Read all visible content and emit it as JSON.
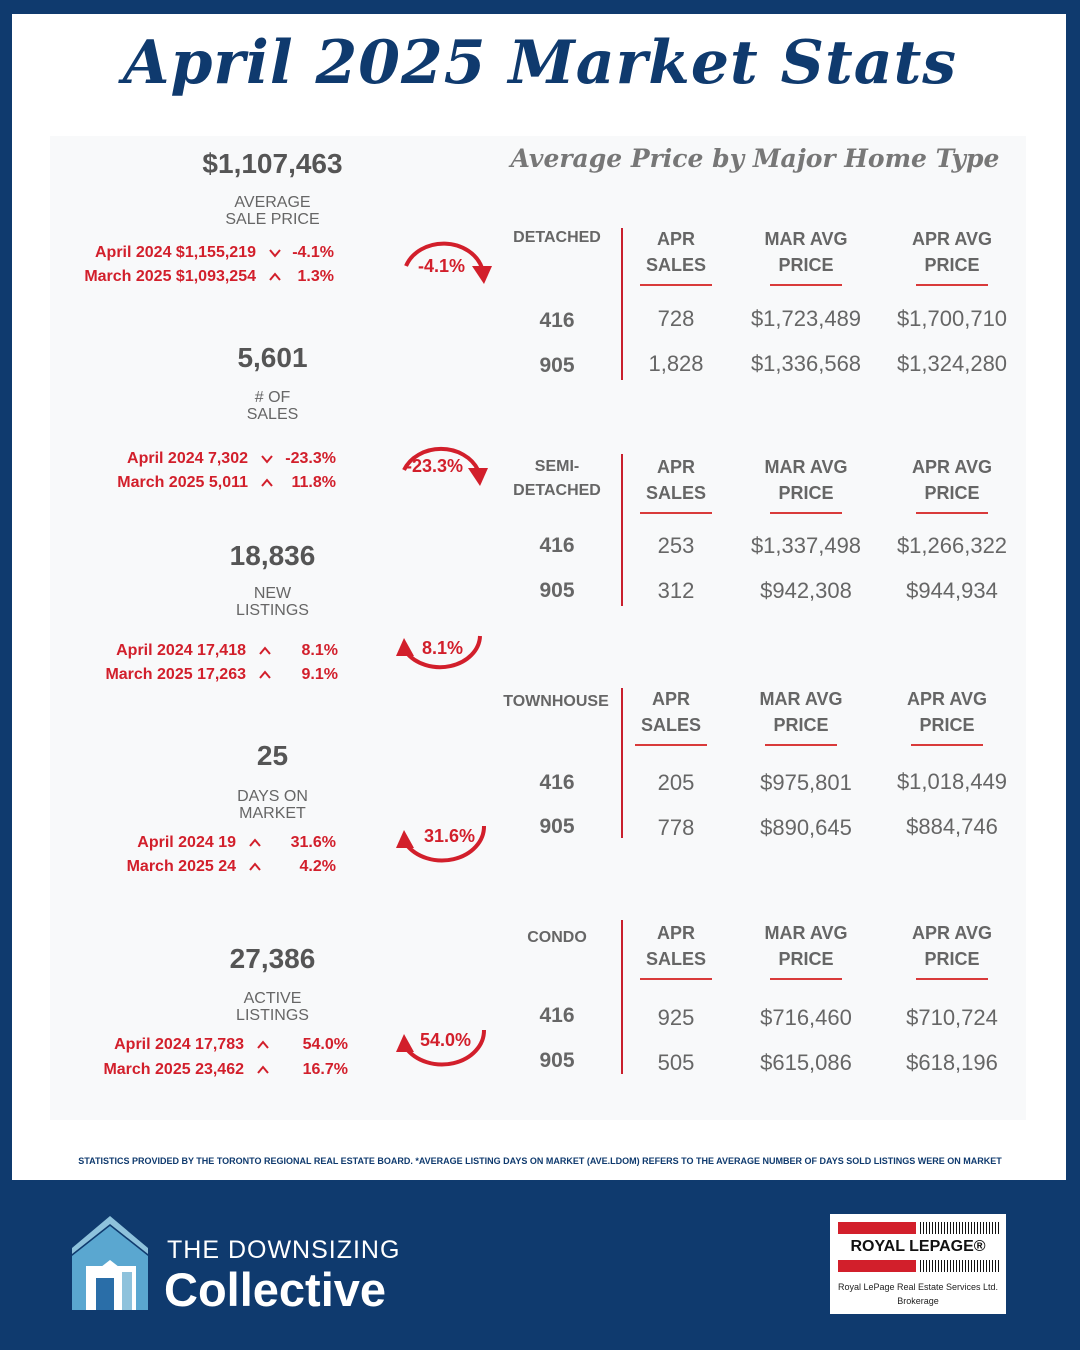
{
  "title": "April 2025 Market Stats",
  "subtitle": "Average Price by Major Home Type",
  "colors": {
    "navy": "#0f3a6e",
    "red": "#d21f2b",
    "gray": "#666666"
  },
  "stats": [
    {
      "value": "$1,107,463",
      "label_1": "AVERAGE",
      "label_2": "SALE PRICE",
      "row1_label": "April 2024  $1,155,219",
      "row1_dir": "down",
      "row1_pct": "-4.1%",
      "row2_label": "March 2025  $1,093,254",
      "row2_dir": "up",
      "row2_pct": "1.3%",
      "arrow_pct": "-4.1%",
      "arrow_dir": "down"
    },
    {
      "value": "5,601",
      "label_1": "# OF",
      "label_2": "SALES",
      "row1_label": "April 2024  7,302",
      "row1_dir": "down",
      "row1_pct": "-23.3%",
      "row2_label": "March 2025  5,011",
      "row2_dir": "up",
      "row2_pct": "11.8%",
      "arrow_pct": "-23.3%",
      "arrow_dir": "down"
    },
    {
      "value": "18,836",
      "label_1": "NEW",
      "label_2": "LISTINGS",
      "row1_label": "April 2024  17,418",
      "row1_dir": "up",
      "row1_pct": "8.1%",
      "row2_label": "March 2025  17,263",
      "row2_dir": "up",
      "row2_pct": "9.1%",
      "arrow_pct": "8.1%",
      "arrow_dir": "up"
    },
    {
      "value": "25",
      "label_1": "DAYS ON",
      "label_2": "MARKET",
      "row1_label": "April 2024  19",
      "row1_dir": "up",
      "row1_pct": "31.6%",
      "row2_label": "March 2025  24",
      "row2_dir": "up",
      "row2_pct": "4.2%",
      "arrow_pct": "31.6%",
      "arrow_dir": "up"
    },
    {
      "value": "27,386",
      "label_1": "ACTIVE",
      "label_2": "LISTINGS",
      "row1_label": "April 2024 17,783",
      "row1_dir": "up",
      "row1_pct": "54.0%",
      "row2_label": "March 2025  23,462",
      "row2_dir": "up",
      "row2_pct": "16.7%",
      "arrow_pct": "54.0%",
      "arrow_dir": "up"
    }
  ],
  "home_types": [
    {
      "label_1": "DETACHED",
      "label_2": "",
      "head_sales_1": "APR",
      "head_sales_2": "SALES",
      "head_mar_1": "MAR AVG",
      "head_mar_2": "PRICE",
      "head_apr_1": "APR AVG",
      "head_apr_2": "PRICE",
      "rows": [
        {
          "area": "416",
          "sales": "728",
          "mar": "$1,723,489",
          "apr": "$1,700,710"
        },
        {
          "area": "905",
          "sales": "1,828",
          "mar": "$1,336,568",
          "apr": "$1,324,280"
        }
      ]
    },
    {
      "label_1": "SEMI-",
      "label_2": "DETACHED",
      "head_sales_1": "APR",
      "head_sales_2": "SALES",
      "head_mar_1": "MAR AVG",
      "head_mar_2": "PRICE",
      "head_apr_1": "APR AVG",
      "head_apr_2": "PRICE",
      "rows": [
        {
          "area": "416",
          "sales": "253",
          "mar": "$1,337,498",
          "apr": "$1,266,322"
        },
        {
          "area": "905",
          "sales": "312",
          "mar": "$942,308",
          "apr": "$944,934"
        }
      ]
    },
    {
      "label_1": "TOWNHOUSE",
      "label_2": "",
      "head_sales_1": "APR",
      "head_sales_2": "SALES",
      "head_mar_1": "MAR AVG",
      "head_mar_2": "PRICE",
      "head_apr_1": "APR AVG",
      "head_apr_2": "PRICE",
      "rows": [
        {
          "area": "416",
          "sales": "205",
          "mar": "$975,801",
          "apr": "$1,018,449"
        },
        {
          "area": "905",
          "sales": "778",
          "mar": "$890,645",
          "apr": "$884,746"
        }
      ]
    },
    {
      "label_1": "CONDO",
      "label_2": "",
      "head_sales_1": "APR",
      "head_sales_2": "SALES",
      "head_mar_1": "MAR AVG",
      "head_mar_2": "PRICE",
      "head_apr_1": "APR AVG",
      "head_apr_2": "PRICE",
      "rows": [
        {
          "area": "416",
          "sales": "925",
          "mar": "$716,460",
          "apr": "$710,724"
        },
        {
          "area": "905",
          "sales": "505",
          "mar": "$615,086",
          "apr": "$618,196"
        }
      ]
    }
  ],
  "footnote": "STATISTICS PROVIDED BY THE TORONTO REGIONAL REAL ESTATE BOARD. *AVERAGE LISTING DAYS ON MARKET (AVE.LDOM) REFERS TO THE AVERAGE NUMBER OF DAYS SOLD LISTINGS WERE ON MARKET",
  "brand": {
    "line_1": "THE DOWNSIZING",
    "line_2": "Collective",
    "icon": "house-logo-icon"
  },
  "brokerage": {
    "name": "ROYAL LEPAGE®",
    "sub_1": "Royal LePage Real Estate Services Ltd.",
    "sub_2": "Brokerage"
  }
}
